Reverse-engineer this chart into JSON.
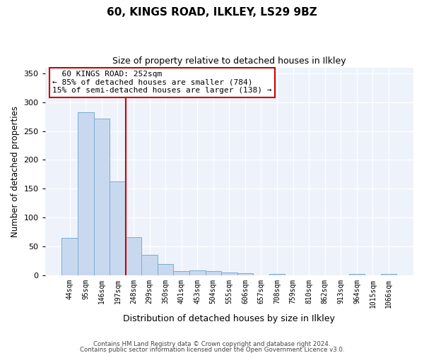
{
  "title": "60, KINGS ROAD, ILKLEY, LS29 9BZ",
  "subtitle": "Size of property relative to detached houses in Ilkley",
  "xlabel": "Distribution of detached houses by size in Ilkley",
  "ylabel": "Number of detached properties",
  "footer_line1": "Contains HM Land Registry data © Crown copyright and database right 2024.",
  "footer_line2": "Contains public sector information licensed under the Open Government Licence v3.0.",
  "annotation_line1": "60 KINGS ROAD: 252sqm",
  "annotation_line2": "← 85% of detached houses are smaller (784)",
  "annotation_line3": "15% of semi-detached houses are larger (138) →",
  "bar_color": "#c8d9ef",
  "bar_edge_color": "#7aabd4",
  "vline_color": "#cc0000",
  "annotation_box_edge_color": "#cc0000",
  "plot_bg_color": "#eef2fa",
  "categories": [
    "44sqm",
    "95sqm",
    "146sqm",
    "197sqm",
    "248sqm",
    "299sqm",
    "350sqm",
    "401sqm",
    "453sqm",
    "504sqm",
    "555sqm",
    "606sqm",
    "657sqm",
    "708sqm",
    "759sqm",
    "810sqm",
    "862sqm",
    "913sqm",
    "964sqm",
    "1015sqm",
    "1066sqm"
  ],
  "values": [
    65,
    283,
    271,
    163,
    66,
    36,
    20,
    8,
    9,
    8,
    5,
    4,
    0,
    3,
    0,
    0,
    0,
    0,
    3,
    0,
    3
  ],
  "vline_x": 3.5,
  "ylim": [
    0,
    360
  ],
  "yticks": [
    0,
    50,
    100,
    150,
    200,
    250,
    300,
    350
  ]
}
